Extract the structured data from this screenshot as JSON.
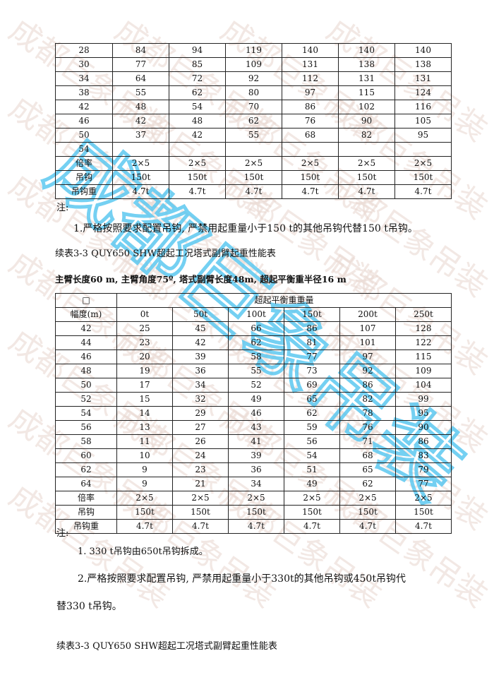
{
  "watermark": {
    "text": "成都巨象吊装",
    "color_faint": "#e8d6cf",
    "color_blue": "#5cc8f0"
  },
  "table1": {
    "rows": [
      [
        "28",
        "84",
        "94",
        "119",
        "140",
        "140",
        "140"
      ],
      [
        "30",
        "77",
        "85",
        "109",
        "131",
        "138",
        "138"
      ],
      [
        "34",
        "64",
        "72",
        "92",
        "112",
        "131",
        "131"
      ],
      [
        "38",
        "55",
        "62",
        "80",
        "97",
        "115",
        "124"
      ],
      [
        "42",
        "48",
        "54",
        "70",
        "86",
        "102",
        "116"
      ],
      [
        "46",
        "42",
        "48",
        "62",
        "76",
        "90",
        "105"
      ],
      [
        "50",
        "37",
        "42",
        "55",
        "68",
        "82",
        "95"
      ],
      [
        "54",
        "",
        "",
        "",
        "",
        "",
        ""
      ],
      [
        "倍率",
        "2×5",
        "2×5",
        "2×5",
        "2×5",
        "2×5",
        "2×5"
      ],
      [
        "吊钩",
        "150t",
        "150t",
        "150t",
        "150t",
        "150t",
        "150t"
      ],
      [
        "吊钩重",
        "4.7t",
        "4.7t",
        "4.7t",
        "4.7t",
        "4.7t",
        "4.7t"
      ]
    ]
  },
  "notes1": {
    "label": "注:",
    "item1": "1.严格按照要求配置吊钩, 严禁用起重量小于150 t的其他吊钩代替150 t吊钩。"
  },
  "table2_title": "续表3-3 QUY650 SHW超起工况塔式副臂起重性能表",
  "table2_subtitle": "主臂长度60 m, 主臂角度75º, 塔式副臂长度48m, 超起平衡重半径16 m",
  "table2": {
    "corner": "□",
    "group_header": "超起平衡重重量",
    "headers": [
      "幅度(m)",
      "0t",
      "50t",
      "100t",
      "150t",
      "200t",
      "250t"
    ],
    "rows": [
      [
        "42",
        "25",
        "45",
        "66",
        "86",
        "107",
        "128"
      ],
      [
        "44",
        "23",
        "42",
        "62",
        "81",
        "101",
        "122"
      ],
      [
        "46",
        "20",
        "39",
        "58",
        "77",
        "97",
        "115"
      ],
      [
        "48",
        "19",
        "36",
        "55",
        "73",
        "92",
        "109"
      ],
      [
        "50",
        "17",
        "34",
        "52",
        "69",
        "86",
        "104"
      ],
      [
        "52",
        "15",
        "32",
        "49",
        "65",
        "82",
        "99"
      ],
      [
        "54",
        "14",
        "29",
        "46",
        "62",
        "78",
        "95"
      ],
      [
        "56",
        "13",
        "27",
        "43",
        "59",
        "76",
        "90"
      ],
      [
        "58",
        "11",
        "26",
        "41",
        "56",
        "71",
        "86"
      ],
      [
        "60",
        "10",
        "24",
        "39",
        "54",
        "68",
        "83"
      ],
      [
        "62",
        "9",
        "23",
        "36",
        "51",
        "65",
        "79"
      ],
      [
        "64",
        "9",
        "21",
        "34",
        "49",
        "62",
        "77"
      ],
      [
        "倍率",
        "2×5",
        "2×5",
        "2×5",
        "2×5",
        "2×5",
        "2×5"
      ],
      [
        "吊钩",
        "150t",
        "150t",
        "150t",
        "150t",
        "150t",
        "150t"
      ],
      [
        "吊钩重",
        "4.7t",
        "4.7t",
        "4.7t",
        "4.7t",
        "4.7t",
        "4.7t"
      ]
    ]
  },
  "notes2": {
    "label": "注:",
    "item1": "1. 330 t吊钩由650t吊钩拆成。",
    "item2": "2.严格按照要求配置吊钩, 严禁用起重量小于330t的其他吊钩或450t吊钩代",
    "item2_cont": "替330 t吊钩。"
  },
  "table3_title": "续表3-3 QUY650 SHW超起工况塔式副臂起重性能表"
}
